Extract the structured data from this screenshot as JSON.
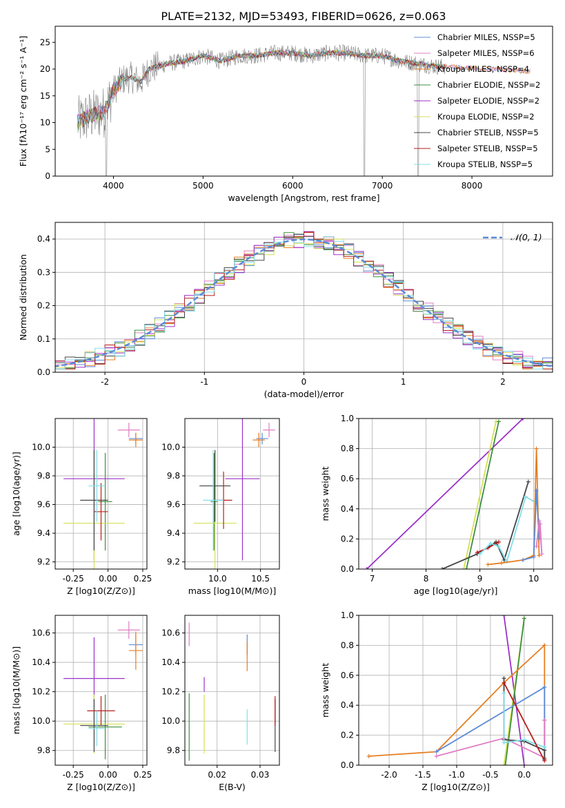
{
  "figure_title": "PLATE=2132, MJD=53493, FIBERID=0626, z=0.063",
  "colors": {
    "Chabrier MILES": "#5b8bd8",
    "Salpeter MILES": "#e07cc4",
    "Kroupa MILES": "#e67e22",
    "Chabrier ELODIE": "#3f8f3f",
    "Salpeter ELODIE": "#9b30c9",
    "Kroupa ELODIE": "#d4e157",
    "Chabrier STELIB": "#444444",
    "Salpeter STELIB": "#b71c1c",
    "Kroupa STELIB": "#80deea",
    "data": "#808080",
    "gauss": "#5b8bd8",
    "grid": "#b0b0b0"
  },
  "chart_data": [
    {
      "type": "line",
      "xlabel": "wavelength [Angstrom, rest frame]",
      "ylabel": "Flux [fλ10⁻¹⁷ erg cm⁻² s⁻¹ A⁻¹]",
      "xlim": [
        3350,
        8900
      ],
      "ylim": [
        0,
        28
      ],
      "xticks": [
        4000,
        5000,
        6000,
        7000,
        8000
      ],
      "yticks": [
        0,
        5,
        10,
        15,
        20,
        25
      ],
      "grid": false,
      "legend_position": "right",
      "legend": [
        "Chabrier MILES, NSSP=5",
        "Salpeter MILES, NSSP=6",
        "Kroupa MILES, NSSP=4",
        "Chabrier ELODIE, NSSP=2",
        "Salpeter ELODIE, NSSP=2",
        "Kroupa ELODIE, NSSP=2",
        "Chabrier STELIB, NSSP=5",
        "Salpeter STELIB, NSSP=5",
        "Kroupa STELIB, NSSP=5"
      ],
      "continuum": {
        "x": [
          3600,
          3700,
          3800,
          3900,
          4000,
          4100,
          4200,
          4300,
          4400,
          4500,
          4600,
          4800,
          5000,
          5200,
          5400,
          5600,
          5800,
          6000,
          6200,
          6400,
          6600,
          6800,
          7000,
          7200,
          7400,
          7600,
          7700
        ],
        "y": [
          10,
          11,
          11.5,
          12,
          16,
          18,
          18.5,
          17.5,
          20,
          20.5,
          21,
          21.5,
          22.5,
          21.5,
          22.5,
          22.5,
          23,
          23,
          22.5,
          23,
          23,
          22.5,
          22.5,
          21.5,
          21,
          20.5,
          20.5
        ]
      }
    },
    {
      "type": "histogram",
      "xlabel": "(data-model)/error",
      "ylabel": "Normed distribution",
      "xlim": [
        -2.5,
        2.5
      ],
      "ylim": [
        0,
        0.45
      ],
      "xticks": [
        -2,
        -1,
        0,
        1,
        2
      ],
      "yticks": [
        0.0,
        0.1,
        0.2,
        0.3,
        0.4
      ],
      "grid": true,
      "legend_position": "top-right",
      "reference_curve": "N(0,1)",
      "bin_edges_range": [
        -2.6,
        2.6
      ],
      "bin_width": 0.1
    },
    {
      "type": "errorbar",
      "xlabel": "Z [log10(Z/Z⊙)]",
      "ylabel": "age  [log10(age/yr)]",
      "xlim": [
        -0.38,
        0.28
      ],
      "ylim": [
        9.15,
        10.2
      ],
      "xticks": [
        -0.25,
        0.0,
        0.25
      ],
      "yticks": [
        9.2,
        9.4,
        9.6,
        9.8,
        10.0
      ],
      "points": [
        {
          "model": "Chabrier MILES",
          "x": 0.2,
          "xerr": 0.05,
          "y": 10.06,
          "yerr": 0.04
        },
        {
          "model": "Salpeter MILES",
          "x": 0.15,
          "xerr": 0.08,
          "y": 10.12,
          "yerr": 0.05
        },
        {
          "model": "Kroupa MILES",
          "x": 0.2,
          "xerr": 0.05,
          "y": 10.05,
          "yerr": 0.05
        },
        {
          "model": "Chabrier ELODIE",
          "x": -0.02,
          "xerr": 0.05,
          "y": 9.62,
          "yerr": 0.34
        },
        {
          "model": "Salpeter ELODIE",
          "x": -0.1,
          "xerr": 0.22,
          "y": 9.78,
          "yerr": 0.57
        },
        {
          "model": "Kroupa ELODIE",
          "x": -0.1,
          "xerr": 0.22,
          "y": 9.47,
          "yerr": 0.5
        },
        {
          "model": "Chabrier STELIB",
          "x": -0.1,
          "xerr": 0.1,
          "y": 9.63,
          "yerr": 0.35
        },
        {
          "model": "Salpeter STELIB",
          "x": -0.05,
          "xerr": 0.05,
          "y": 9.55,
          "yerr": 0.2
        },
        {
          "model": "Kroupa STELIB",
          "x": -0.08,
          "xerr": 0.06,
          "y": 9.73,
          "yerr": 0.25
        }
      ]
    },
    {
      "type": "errorbar",
      "xlabel": "mass [log10(M/M⊙)]",
      "ylabel": "",
      "xlim": [
        9.62,
        10.72
      ],
      "ylim": [
        9.15,
        10.2
      ],
      "xticks": [
        10.0,
        10.5
      ],
      "yticks": [
        9.2,
        9.4,
        9.6,
        9.8,
        10.0
      ],
      "points": [
        {
          "model": "Chabrier MILES",
          "x": 10.52,
          "xerr": 0.07,
          "y": 10.06,
          "yerr": 0.04
        },
        {
          "model": "Salpeter MILES",
          "x": 10.6,
          "xerr": 0.07,
          "y": 10.12,
          "yerr": 0.05
        },
        {
          "model": "Kroupa MILES",
          "x": 10.48,
          "xerr": 0.07,
          "y": 10.05,
          "yerr": 0.05
        },
        {
          "model": "Chabrier ELODIE",
          "x": 9.96,
          "xerr": 0.04,
          "y": 9.62,
          "yerr": 0.34
        },
        {
          "model": "Salpeter ELODIE",
          "x": 10.29,
          "xerr": 0.2,
          "y": 9.78,
          "yerr": 0.57
        },
        {
          "model": "Kroupa ELODIE",
          "x": 9.97,
          "xerr": 0.25,
          "y": 9.47,
          "yerr": 0.5
        },
        {
          "model": "Chabrier STELIB",
          "x": 9.97,
          "xerr": 0.18,
          "y": 9.73,
          "yerr": 0.25
        },
        {
          "model": "Salpeter STELIB",
          "x": 10.07,
          "xerr": 0.1,
          "y": 9.63,
          "yerr": 0.2
        },
        {
          "model": "Kroupa STELIB",
          "x": 9.95,
          "xerr": 0.12,
          "y": 9.63,
          "yerr": 0.35
        }
      ]
    },
    {
      "type": "line",
      "xlabel": "age  [log10(age/yr)]",
      "ylabel": "mass weight",
      "xlim": [
        6.75,
        10.35
      ],
      "ylim": [
        0,
        1
      ],
      "xticks": [
        7,
        8,
        9,
        10
      ],
      "yticks": [
        0.0,
        0.2,
        0.4,
        0.6,
        0.8,
        1.0
      ],
      "grid": true,
      "series": [
        {
          "model": "Salpeter ELODIE",
          "x": [
            6.9,
            9.8
          ],
          "y": [
            0.0,
            1.0
          ]
        },
        {
          "model": "Kroupa ELODIE",
          "x": [
            8.7,
            9.3
          ],
          "y": [
            0.0,
            0.98
          ]
        },
        {
          "model": "Chabrier ELODIE",
          "x": [
            8.75,
            9.35
          ],
          "y": [
            0.0,
            0.98
          ]
        },
        {
          "model": "Chabrier STELIB",
          "x": [
            8.3,
            8.95,
            9.3,
            9.45,
            9.9
          ],
          "y": [
            0.0,
            0.1,
            0.18,
            0.06,
            0.58
          ]
        },
        {
          "model": "Salpeter STELIB",
          "x": [
            8.95,
            9.15,
            9.35
          ],
          "y": [
            0.11,
            0.14,
            0.18
          ]
        },
        {
          "model": "Kroupa STELIB",
          "x": [
            9.0,
            9.2,
            9.35,
            9.5,
            9.85,
            10.0
          ],
          "y": [
            0.1,
            0.17,
            0.15,
            0.05,
            0.48,
            0.45
          ]
        },
        {
          "model": "Kroupa MILES",
          "x": [
            9.15,
            9.4,
            9.8,
            10.0,
            10.05,
            10.1
          ],
          "y": [
            0.03,
            0.04,
            0.06,
            0.09,
            0.8,
            0.09
          ]
        },
        {
          "model": "Chabrier MILES",
          "x": [
            9.8,
            10.0,
            10.05,
            10.1
          ],
          "y": [
            0.06,
            0.08,
            0.52,
            0.2
          ]
        },
        {
          "model": "Salpeter MILES",
          "x": [
            10.05,
            10.1,
            10.15,
            10.12
          ],
          "y": [
            0.15,
            0.32,
            0.1,
            0.3
          ]
        }
      ]
    },
    {
      "type": "errorbar",
      "xlabel": "Z [log10(Z/Z⊙)]",
      "ylabel": "mass [log10(M/M⊙)]",
      "xlim": [
        -0.38,
        0.28
      ],
      "ylim": [
        9.7,
        10.72
      ],
      "xticks": [
        -0.25,
        0.0,
        0.25
      ],
      "yticks": [
        9.8,
        10.0,
        10.2,
        10.4,
        10.6
      ],
      "points": [
        {
          "model": "Chabrier MILES",
          "x": 0.2,
          "xerr": 0.05,
          "y": 10.52,
          "yerr": 0.07
        },
        {
          "model": "Salpeter MILES",
          "x": 0.15,
          "xerr": 0.08,
          "y": 10.62,
          "yerr": 0.06
        },
        {
          "model": "Kroupa MILES",
          "x": 0.2,
          "xerr": 0.05,
          "y": 10.48,
          "yerr": 0.13
        },
        {
          "model": "Chabrier ELODIE",
          "x": -0.02,
          "xerr": 0.12,
          "y": 9.96,
          "yerr": 0.22
        },
        {
          "model": "Salpeter ELODIE",
          "x": -0.1,
          "xerr": 0.22,
          "y": 10.29,
          "yerr": 0.28
        },
        {
          "model": "Kroupa ELODIE",
          "x": -0.1,
          "xerr": 0.22,
          "y": 9.98,
          "yerr": 0.2
        },
        {
          "model": "Chabrier STELIB",
          "x": -0.1,
          "xerr": 0.1,
          "y": 9.97,
          "yerr": 0.18
        },
        {
          "model": "Salpeter STELIB",
          "x": -0.05,
          "xerr": 0.1,
          "y": 10.07,
          "yerr": 0.1
        },
        {
          "model": "Kroupa STELIB",
          "x": -0.08,
          "xerr": 0.06,
          "y": 9.95,
          "yerr": 0.12
        }
      ]
    },
    {
      "type": "errorbar",
      "xlabel": "E(B-V)",
      "ylabel": "",
      "xlim": [
        0.0125,
        0.0345
      ],
      "ylim": [
        9.7,
        10.72
      ],
      "xticks": [
        0.02,
        0.03
      ],
      "yticks": [
        9.8,
        10.0,
        10.2,
        10.4,
        10.6
      ],
      "points": [
        {
          "model": "Chabrier MILES",
          "x": 0.027,
          "y": 10.52,
          "yerr": 0.07
        },
        {
          "model": "Salpeter MILES",
          "x": 0.0135,
          "y": 10.59,
          "yerr": 0.08
        },
        {
          "model": "Kroupa MILES",
          "x": 0.027,
          "y": 10.44,
          "yerr": 0.1
        },
        {
          "model": "Chabrier ELODIE",
          "x": 0.0135,
          "y": 9.96,
          "yerr": 0.23
        },
        {
          "model": "Salpeter ELODIE",
          "x": 0.017,
          "y": 10.25,
          "yerr": 0.05
        },
        {
          "model": "Kroupa ELODIE",
          "x": 0.017,
          "y": 9.98,
          "yerr": 0.2
        },
        {
          "model": "Chabrier STELIB",
          "x": 0.0335,
          "y": 9.97,
          "yerr": 0.18
        },
        {
          "model": "Salpeter STELIB",
          "x": 0.0335,
          "y": 10.07,
          "yerr": 0.1
        },
        {
          "model": "Kroupa STELIB",
          "x": 0.027,
          "y": 9.96,
          "yerr": 0.12
        }
      ]
    },
    {
      "type": "line",
      "xlabel": "Z [log10(Z/Z⊙)]",
      "ylabel": "mass weight",
      "xlim": [
        -2.45,
        0.42
      ],
      "ylim": [
        0,
        1
      ],
      "xticks": [
        -2.0,
        -1.5,
        -1.0,
        -0.5,
        0.0
      ],
      "yticks": [
        0.0,
        0.2,
        0.4,
        0.6,
        0.8,
        1.0
      ],
      "grid": true,
      "series": [
        {
          "model": "Salpeter ELODIE",
          "x": [
            -0.3,
            0.0
          ],
          "y": [
            1.0,
            0.0
          ]
        },
        {
          "model": "Kroupa ELODIE",
          "x": [
            -0.3,
            0.0
          ],
          "y": [
            0.0,
            0.98
          ]
        },
        {
          "model": "Chabrier ELODIE",
          "x": [
            -0.28,
            0.0
          ],
          "y": [
            0.0,
            0.98
          ]
        },
        {
          "model": "Kroupa MILES",
          "x": [
            -2.3,
            -1.3,
            -0.3,
            0.3,
            0.3,
            0.3
          ],
          "y": [
            0.06,
            0.09,
            0.55,
            0.8,
            0.3,
            0.04
          ]
        },
        {
          "model": "Chabrier MILES",
          "x": [
            -1.3,
            0.3,
            0.3
          ],
          "y": [
            0.09,
            0.52,
            0.1
          ]
        },
        {
          "model": "Salpeter MILES",
          "x": [
            -1.3,
            -0.3,
            0.3,
            0.3
          ],
          "y": [
            0.06,
            0.18,
            0.05,
            0.3
          ]
        },
        {
          "model": "Chabrier STELIB",
          "x": [
            -0.3,
            -0.3,
            0.0,
            0.3,
            0.3
          ],
          "y": [
            0.58,
            0.17,
            0.16,
            0.1,
            0.04
          ]
        },
        {
          "model": "Kroupa STELIB",
          "x": [
            -0.3,
            -0.3,
            0.0,
            0.3
          ],
          "y": [
            0.48,
            0.15,
            0.17,
            0.12
          ]
        },
        {
          "model": "Salpeter STELIB",
          "x": [
            -0.3,
            0.3
          ],
          "y": [
            0.55,
            0.03
          ]
        }
      ]
    }
  ]
}
